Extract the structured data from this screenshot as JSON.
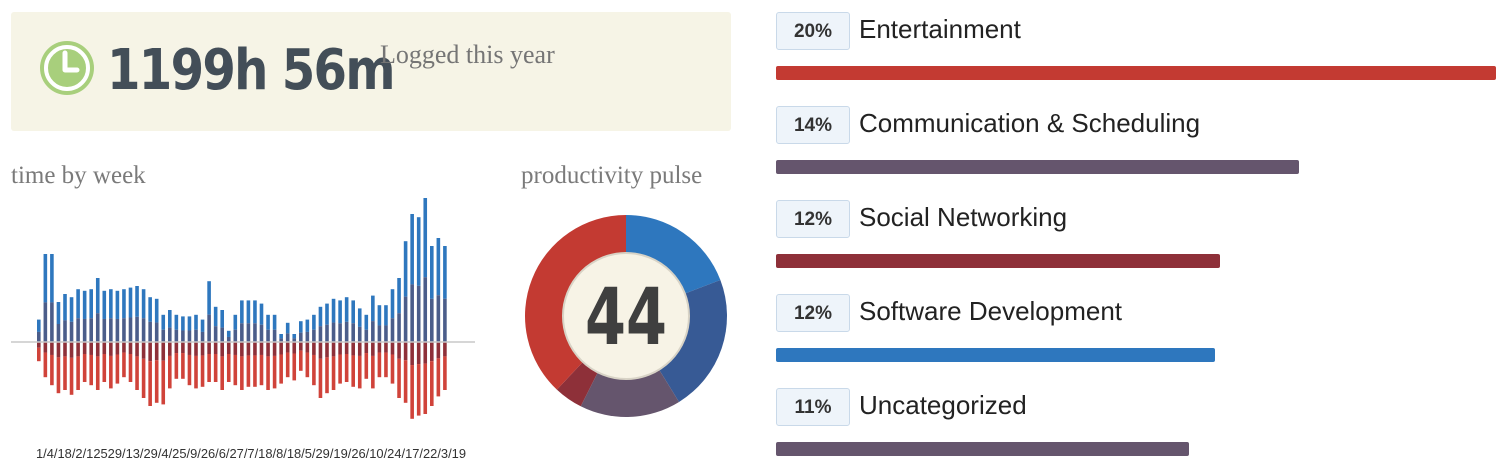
{
  "summary": {
    "total_time": "1199h 56m",
    "label": "Logged this year"
  },
  "week_chart": {
    "title": "time by week",
    "x_labels_text": "1/4/18/2/12529/13/29/4/25/9/26/6/27/7/18/8/18/5/29/19/26/10/24/17/22/3/19"
  },
  "pulse": {
    "title": "productivity pulse",
    "score": "44"
  },
  "categories": [
    {
      "percent": "20%",
      "name": "Entertainment",
      "fraction": 1.0,
      "color": "#c33a32"
    },
    {
      "percent": "14%",
      "name": "Communication & Scheduling",
      "fraction": 0.726,
      "color": "#65556d"
    },
    {
      "percent": "12%",
      "name": "Social Networking",
      "fraction": 0.617,
      "color": "#8e3039"
    },
    {
      "percent": "12%",
      "name": "Software Development",
      "fraction": 0.61,
      "color": "#2e77be"
    },
    {
      "percent": "11%",
      "name": "Uncategorized",
      "fraction": 0.574,
      "color": "#65556d"
    }
  ],
  "chart_data": [
    {
      "type": "bar",
      "title": "time by week",
      "series": [
        {
          "values": [
            14,
            55,
            55,
            25,
            30,
            28,
            33,
            32,
            33,
            40,
            32,
            33,
            32,
            33,
            34,
            35,
            33,
            28,
            27,
            17,
            20,
            17,
            16,
            16,
            17,
            14,
            38,
            22,
            20,
            7,
            17,
            26,
            26,
            26,
            24,
            17,
            17,
            5,
            12,
            5,
            13,
            14,
            17,
            22,
            24,
            27,
            26,
            28,
            26,
            21,
            17,
            29,
            23,
            23,
            33,
            40,
            63,
            80,
            78,
            90,
            60,
            65,
            60
          ]
        },
        {
          "values": [
            -12,
            -22,
            -27,
            -32,
            -30,
            -33,
            -30,
            -25,
            -27,
            -30,
            -25,
            -29,
            -26,
            -22,
            -25,
            -30,
            -35,
            -40,
            -38,
            -39,
            -29,
            -23,
            -23,
            -27,
            -29,
            -28,
            -25,
            -25,
            -30,
            -25,
            -27,
            -30,
            -28,
            -28,
            -27,
            -30,
            -29,
            -26,
            -22,
            -24,
            -18,
            -22,
            -27,
            -35,
            -32,
            -30,
            -26,
            -25,
            -28,
            -29,
            -23,
            -29,
            -22,
            -22,
            -26,
            -35,
            -38,
            -48,
            -46,
            -45,
            -40,
            -34,
            -30
          ]
        }
      ]
    },
    {
      "type": "pie",
      "title": "productivity pulse",
      "values": [
        19.2,
        22.0,
        16.2,
        4.6,
        38.0
      ],
      "colors": [
        "#2e77be",
        "#375a95",
        "#65556d",
        "#8e3039",
        "#c33a32"
      ]
    }
  ]
}
